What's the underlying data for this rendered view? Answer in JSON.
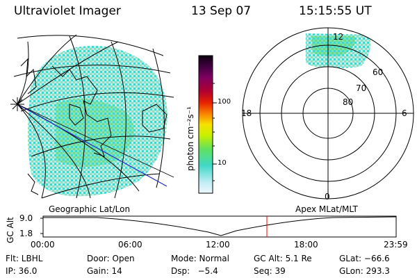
{
  "header": {
    "title": "Ultraviolet Imager",
    "date": "13 Sep 07",
    "time": "15:15:55 UT"
  },
  "colorbar": {
    "unit_label": "photon cm⁻²s⁻¹",
    "ticks": [
      "100",
      "10"
    ]
  },
  "polar": {
    "mlt_labels": [
      "12",
      "18",
      "6",
      "0"
    ],
    "lat_labels": [
      "60",
      "70",
      "80"
    ]
  },
  "timeline": {
    "left_label": "Geographic Lat/Lon",
    "right_label": "Apex MLat/MLT",
    "y_axis_title": "GC Alt",
    "y_ticks": [
      "9.0",
      "1.8"
    ],
    "x_ticks": [
      "00:00",
      "06:00",
      "12:00",
      "18:00",
      "23:59"
    ],
    "marker_color": "#ff0000"
  },
  "info": {
    "row1": {
      "filter": "Flt: LBHL",
      "door": "Door: Open",
      "mode": "Mode: Normal",
      "gc_alt": "GC Alt: 5.1 Re",
      "glat": "GLat: −66.6"
    },
    "row2": {
      "ip": "IP: 36.0",
      "gain": "Gain: 14",
      "dsp": "Dsp:   −5.4",
      "seq": "Seq: 39",
      "glon": "GLon: 293.3"
    }
  },
  "colors": {
    "aurora_cyan": "#40e0d0",
    "aurora_green": "#55d98a",
    "orbit_line": "#2030c0"
  }
}
